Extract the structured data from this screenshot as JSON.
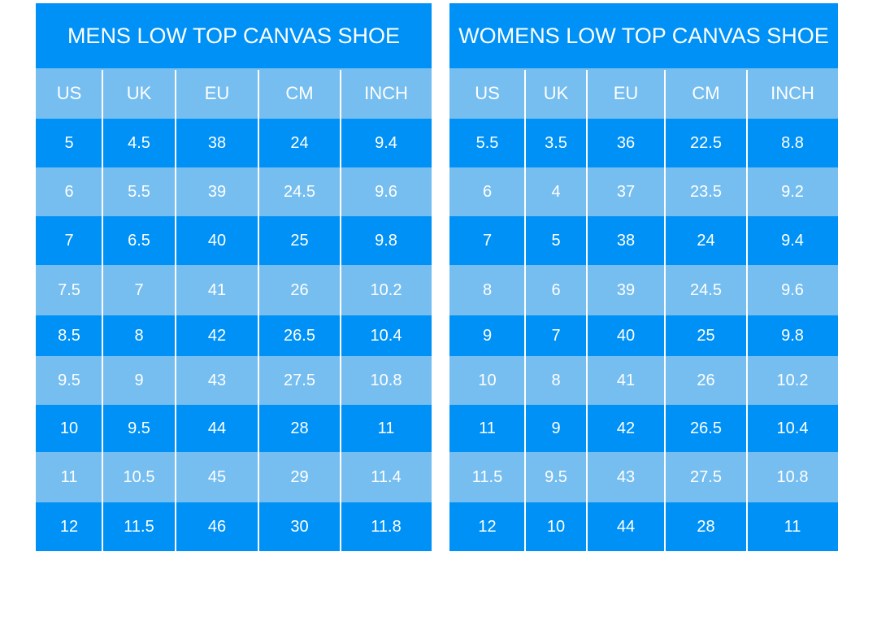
{
  "tables": [
    {
      "title": "MENS LOW TOP CANVAS SHOE",
      "headers": [
        "US",
        "UK",
        "EU",
        "CM",
        "INCH"
      ],
      "rows": [
        [
          "5",
          "4.5",
          "38",
          "24",
          "9.4"
        ],
        [
          "6",
          "5.5",
          "39",
          "24.5",
          "9.6"
        ],
        [
          "7",
          "6.5",
          "40",
          "25",
          "9.8"
        ],
        [
          "7.5",
          "7",
          "41",
          "26",
          "10.2"
        ],
        [
          "8.5",
          "8",
          "42",
          "26.5",
          "10.4"
        ],
        [
          "9.5",
          "9",
          "43",
          "27.5",
          "10.8"
        ],
        [
          "10",
          "9.5",
          "44",
          "28",
          "11"
        ],
        [
          "11",
          "10.5",
          "45",
          "29",
          "11.4"
        ],
        [
          "12",
          "11.5",
          "46",
          "30",
          "11.8"
        ]
      ]
    },
    {
      "title": "WOMENS LOW TOP CANVAS SHOE",
      "headers": [
        "US",
        "UK",
        "EU",
        "CM",
        "INCH"
      ],
      "rows": [
        [
          "5.5",
          "3.5",
          "36",
          "22.5",
          "8.8"
        ],
        [
          "6",
          "4",
          "37",
          "23.5",
          "9.2"
        ],
        [
          "7",
          "5",
          "38",
          "24",
          "9.4"
        ],
        [
          "8",
          "6",
          "39",
          "24.5",
          "9.6"
        ],
        [
          "9",
          "7",
          "40",
          "25",
          "9.8"
        ],
        [
          "10",
          "8",
          "41",
          "26",
          "10.2"
        ],
        [
          "11",
          "9",
          "42",
          "26.5",
          "10.4"
        ],
        [
          "11.5",
          "9.5",
          "43",
          "27.5",
          "10.8"
        ],
        [
          "12",
          "10",
          "44",
          "28",
          "11"
        ]
      ]
    }
  ]
}
